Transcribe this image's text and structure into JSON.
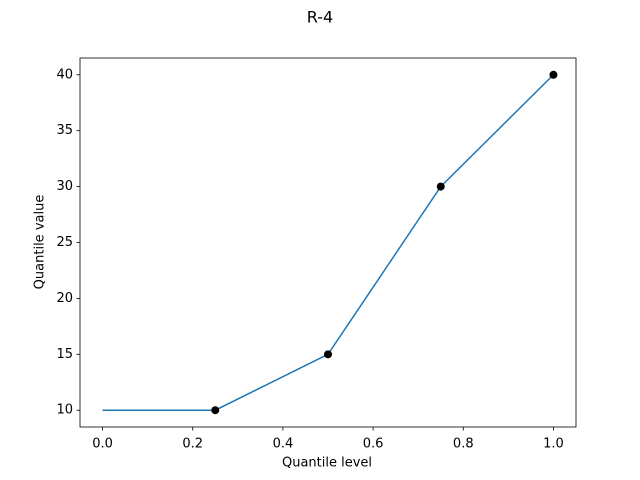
{
  "chart_data": {
    "type": "line",
    "title": "R-4",
    "x_label": "Quantile level",
    "y_label": "Quantile value",
    "series": [
      {
        "mark": "line",
        "color": "#1f77b4",
        "x": [
          0,
          0.25,
          0.5,
          0.75,
          1
        ],
        "values": [
          10,
          10,
          15,
          30,
          40
        ]
      },
      {
        "mark": "point",
        "color": "#000000",
        "x": [
          0.25,
          0.5,
          0.75,
          1
        ],
        "values": [
          10,
          15,
          30,
          40
        ]
      }
    ],
    "xlim": [
      -0.05,
      1.05
    ],
    "ylim": [
      8.5,
      41.5
    ],
    "xticks": [
      {
        "value": 0,
        "label": "0.0"
      },
      0.2,
      0.4,
      0.6,
      0.8,
      {
        "value": 1,
        "label": "1.0"
      }
    ],
    "yticks": [
      10,
      15,
      20,
      25,
      30,
      35,
      40
    ],
    "grid": false
  }
}
